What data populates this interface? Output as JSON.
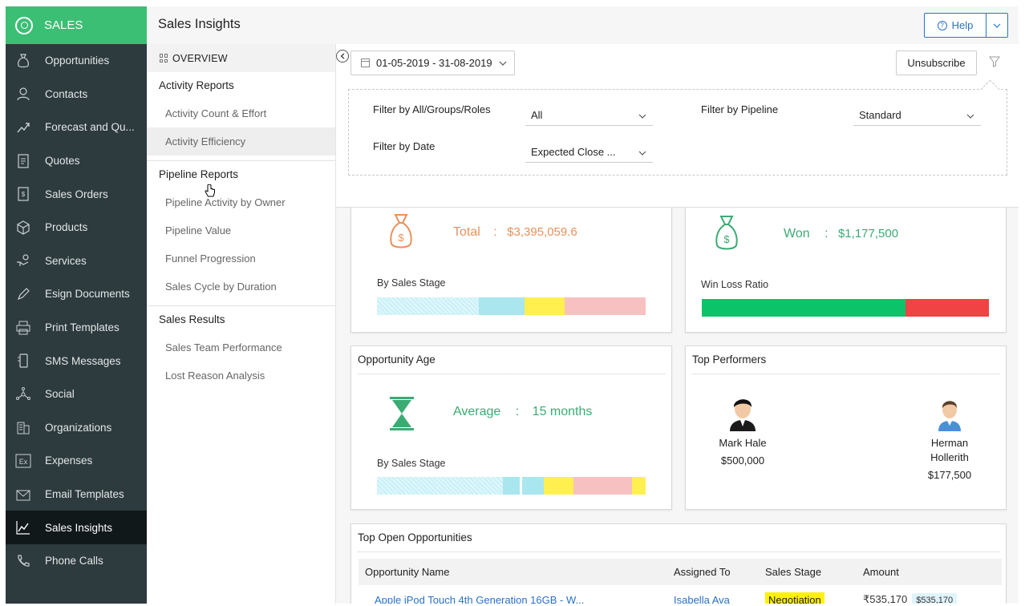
{
  "nav": {
    "brand": "SALES",
    "items": [
      {
        "label": "Opportunities",
        "icon": "money-bag-icon"
      },
      {
        "label": "Contacts",
        "icon": "person-icon"
      },
      {
        "label": "Forecast and Qu...",
        "icon": "forecast-icon"
      },
      {
        "label": "Quotes",
        "icon": "quote-document-icon"
      },
      {
        "label": "Sales Orders",
        "icon": "sales-order-icon"
      },
      {
        "label": "Products",
        "icon": "cube-icon"
      },
      {
        "label": "Services",
        "icon": "service-hand-icon"
      },
      {
        "label": "Esign Documents",
        "icon": "pen-icon"
      },
      {
        "label": "Print Templates",
        "icon": "printer-icon"
      },
      {
        "label": "SMS Messages",
        "icon": "mobile-phone-icon"
      },
      {
        "label": "Social",
        "icon": "network-icon"
      },
      {
        "label": "Organizations",
        "icon": "building-icon"
      },
      {
        "label": "Expenses",
        "icon": "ex-box-icon"
      },
      {
        "label": "Email Templates",
        "icon": "envelope-icon"
      },
      {
        "label": "Sales Insights",
        "icon": "line-chart-icon",
        "active": true
      },
      {
        "label": "Phone Calls",
        "icon": "phone-icon"
      }
    ]
  },
  "header": {
    "title": "Sales Insights",
    "help_label": "Help",
    "help_dropdown": "⌄"
  },
  "reports": {
    "overview": "OVERVIEW",
    "activity": {
      "title": "Activity Reports",
      "items": [
        "Activity Count & Effort",
        "Activity Efficiency"
      ]
    },
    "pipeline": {
      "title": "Pipeline Reports",
      "items": [
        "Pipeline Activity by Owner",
        "Pipeline Value",
        "Funnel Progression",
        "Sales Cycle by Duration"
      ]
    },
    "results": {
      "title": "Sales Results",
      "items": [
        "Sales Team Performance",
        "Lost Reason Analysis"
      ]
    }
  },
  "filters": {
    "date_range": "01-05-2019 - 31-08-2019",
    "unsubscribe": "Unsubscribe",
    "by_groups_label": "Filter by All/Groups/Roles",
    "by_groups_value": "All",
    "by_pipeline_label": "Filter by Pipeline",
    "by_pipeline_value": "Standard",
    "by_date_label": "Filter by Date",
    "by_date_value": "Expected Close ..."
  },
  "total_card": {
    "label": "Total",
    "separator": ":",
    "value": "$3,395,059.6",
    "sub": "By Sales Stage",
    "color": "#e8915a",
    "bar_segments": [
      {
        "fraction": 0.38,
        "color": "#c9f0f7",
        "pattern": true
      },
      {
        "fraction": 0.17,
        "color": "#a9e6ee"
      },
      {
        "fraction": 0.15,
        "color": "#fff04f"
      },
      {
        "fraction": 0.3,
        "color": "#f7c1c1"
      }
    ]
  },
  "won_card": {
    "label": "Won",
    "separator": ":",
    "value": "$1,177,500",
    "sub": "Win Loss Ratio",
    "color": "#3bab74",
    "ratio_segments": [
      {
        "fraction": 0.71,
        "color": "#0bc46a"
      },
      {
        "fraction": 0.29,
        "color": "#f04343"
      }
    ]
  },
  "age_card": {
    "title": "Opportunity Age",
    "label": "Average",
    "separator": ":",
    "value": "15 months",
    "sub": "By Sales Stage",
    "color": "#3bab74",
    "bar_segments": [
      {
        "fraction": 0.47,
        "color": "#c9f0f7",
        "pattern": true
      },
      {
        "fraction": 0.06,
        "color": "#a9e6ee"
      },
      {
        "fraction": 0.01,
        "color": "#ffffff"
      },
      {
        "fraction": 0.08,
        "color": "#a9e6ee"
      },
      {
        "fraction": 0.11,
        "color": "#fff04f"
      },
      {
        "fraction": 0.22,
        "color": "#f7c1c1"
      },
      {
        "fraction": 0.05,
        "color": "#fff04f"
      }
    ]
  },
  "performers": {
    "title": "Top Performers",
    "list": [
      {
        "name": "Mark Hale",
        "amount": "$500,000"
      },
      {
        "name": "Herman Hollerith",
        "amount": "$177,500"
      }
    ]
  },
  "opportunities": {
    "title": "Top Open Opportunities",
    "columns": [
      "Opportunity Name",
      "Assigned To",
      "Sales Stage",
      "Amount"
    ],
    "rows": [
      {
        "name": "Apple iPod Touch 4th Generation 16GB - W...",
        "assigned": "Isabella Ava",
        "stage": "Negotiation",
        "amount": "₹535,170",
        "amount_converted": "$535,170"
      }
    ]
  }
}
